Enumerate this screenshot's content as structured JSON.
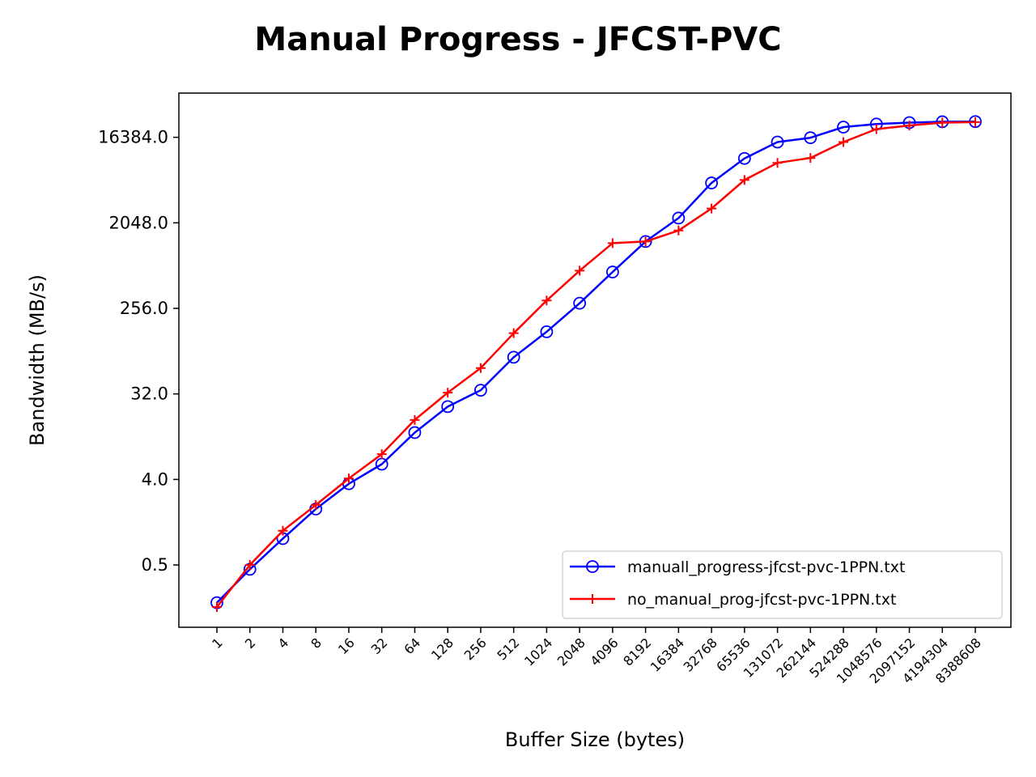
{
  "chart_data": {
    "type": "line",
    "title": "Manual Progress - JFCST-PVC",
    "xlabel": "Buffer Size (bytes)",
    "ylabel": "Bandwidth (MB/s)",
    "yscale": "log2",
    "ylim": [
      0.11,
      48000
    ],
    "yticks": [
      "0.5",
      "4.0",
      "32.0",
      "256.0",
      "2048.0",
      "16384.0"
    ],
    "categories": [
      "1",
      "2",
      "4",
      "8",
      "16",
      "32",
      "64",
      "128",
      "256",
      "512",
      "1024",
      "2048",
      "4096",
      "8192",
      "16384",
      "32768",
      "65536",
      "131072",
      "262144",
      "524288",
      "1048576",
      "2097152",
      "4194304",
      "8388608"
    ],
    "legend_position": "lower-right",
    "grid": false,
    "series": [
      {
        "name": "manuall_progress-jfcst-pvc-1PPN.txt",
        "color": "#0000ff",
        "marker": "circle",
        "values": [
          0.2,
          0.45,
          0.95,
          1.95,
          3.6,
          5.8,
          12.5,
          23.5,
          35,
          78,
          145,
          290,
          620,
          1300,
          2300,
          5400,
          9800,
          14600,
          16200,
          21000,
          22600,
          23400,
          23900,
          24000
        ]
      },
      {
        "name": "no_manual_prog-jfcst-pvc-1PPN.txt",
        "color": "#ff0000",
        "marker": "plus",
        "values": [
          0.18,
          0.5,
          1.15,
          2.15,
          4.1,
          7.4,
          17,
          33,
          60,
          140,
          310,
          640,
          1250,
          1300,
          1700,
          2900,
          5800,
          8800,
          9900,
          14600,
          20000,
          21800,
          23400,
          23700
        ]
      }
    ]
  }
}
